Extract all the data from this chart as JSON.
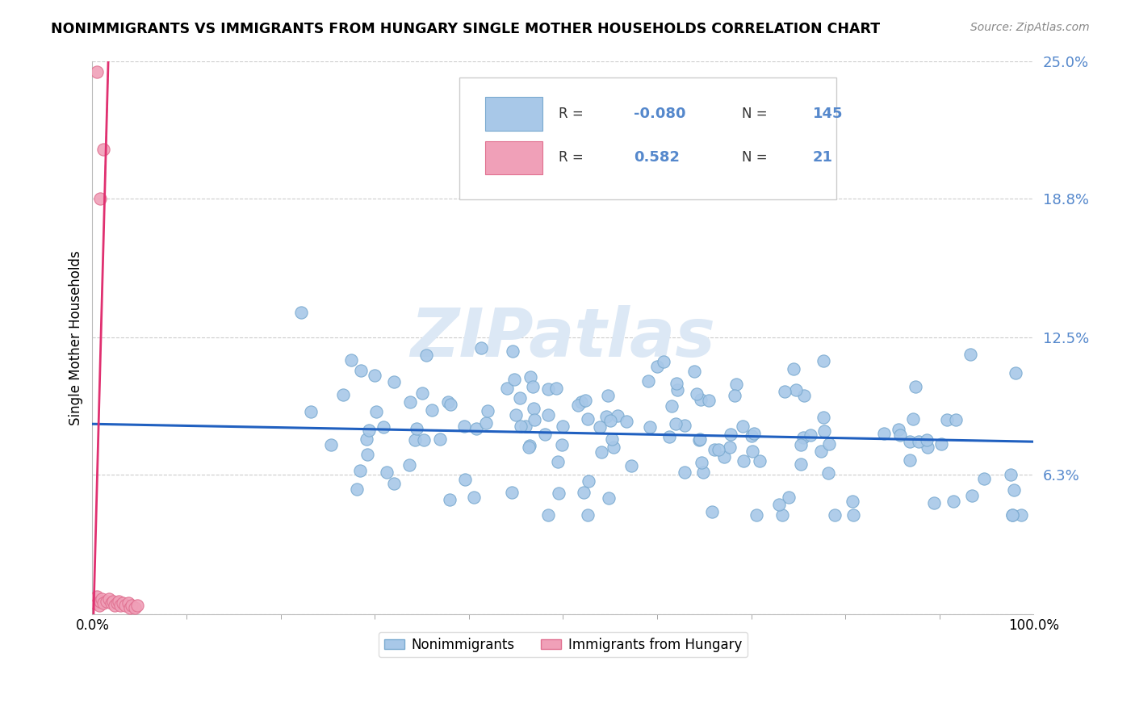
{
  "title": "NONIMMIGRANTS VS IMMIGRANTS FROM HUNGARY SINGLE MOTHER HOUSEHOLDS CORRELATION CHART",
  "source": "Source: ZipAtlas.com",
  "ylabel": "Single Mother Households",
  "xlim": [
    0.0,
    1.0
  ],
  "ylim": [
    0.0,
    0.25
  ],
  "ytick_vals": [
    0.0,
    0.063,
    0.125,
    0.188,
    0.25
  ],
  "ytick_labels": [
    "",
    "6.3%",
    "12.5%",
    "18.8%",
    "25.0%"
  ],
  "blue_R": -0.08,
  "blue_N": 145,
  "pink_R": 0.582,
  "pink_N": 21,
  "blue_color": "#a8c8e8",
  "pink_color": "#f0a0b8",
  "blue_edge_color": "#7aaad0",
  "pink_edge_color": "#e07090",
  "blue_line_color": "#2060c0",
  "pink_line_color": "#e03070",
  "tick_color": "#5588cc",
  "legend_blue_label": "Nonimmigrants",
  "legend_pink_label": "Immigrants from Hungary",
  "watermark_color": "#dce8f5"
}
